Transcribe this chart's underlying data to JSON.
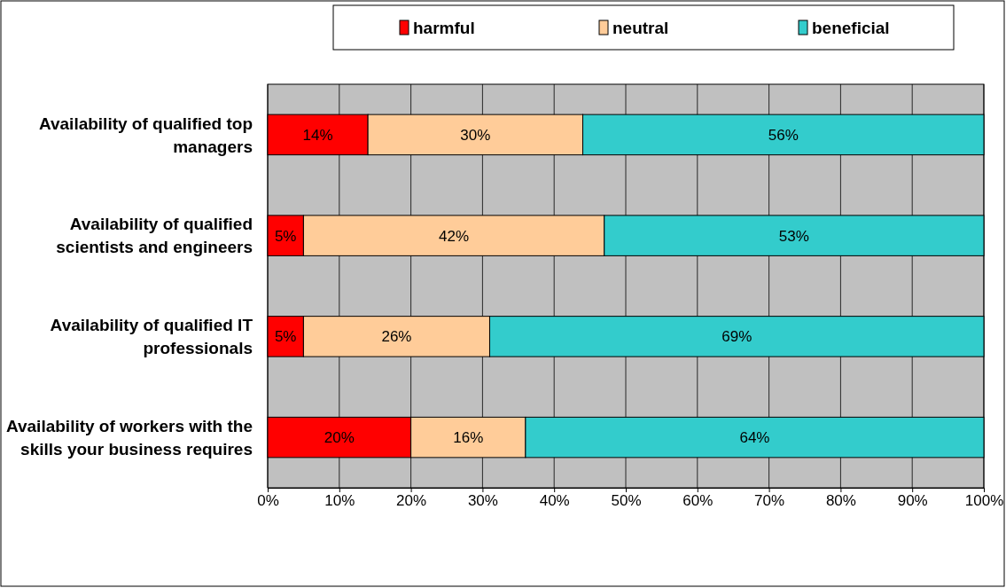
{
  "chart_data": {
    "type": "bar",
    "orientation": "horizontal",
    "stacked": true,
    "categories": [
      "Availability of qualified top managers",
      "Availability of qualified scientists and engineers",
      "Availability of qualified IT professionals",
      "Availability of workers with the skills your business requires"
    ],
    "series": [
      {
        "name": "harmful",
        "color": "#ff0000",
        "values": [
          14,
          5,
          5,
          20
        ],
        "value_labels": [
          "14%",
          "5%",
          "5%",
          "20%"
        ]
      },
      {
        "name": "neutral",
        "color": "#ffcc99",
        "values": [
          30,
          42,
          26,
          16
        ],
        "value_labels": [
          "30%",
          "42%",
          "26%",
          "16%"
        ]
      },
      {
        "name": "beneficial",
        "color": "#33cccc",
        "values": [
          56,
          53,
          69,
          64
        ],
        "value_labels": [
          "56%",
          "53%",
          "69%",
          "64%"
        ]
      }
    ],
    "xlim": [
      0,
      100
    ],
    "xticks": [
      {
        "value": 0,
        "label": "0%"
      },
      {
        "value": 10,
        "label": "10%"
      },
      {
        "value": 20,
        "label": "20%"
      },
      {
        "value": 30,
        "label": "30%"
      },
      {
        "value": 40,
        "label": "40%"
      },
      {
        "value": 50,
        "label": "50%"
      },
      {
        "value": 60,
        "label": "60%"
      },
      {
        "value": 70,
        "label": "70%"
      },
      {
        "value": 80,
        "label": "80%"
      },
      {
        "value": 90,
        "label": "90%"
      },
      {
        "value": 100,
        "label": "100%"
      }
    ],
    "grid": "x",
    "legend": "top"
  }
}
